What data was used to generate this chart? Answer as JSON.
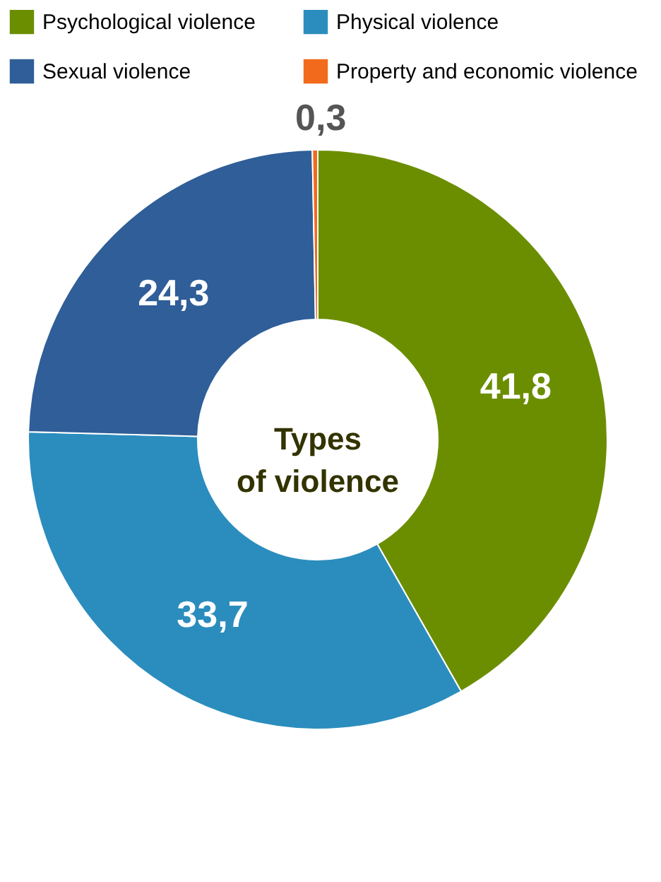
{
  "chart_data": {
    "type": "donut",
    "categories": [
      "Psychological violence",
      "Physical violence",
      "Sexual violence",
      "Property and economic violence"
    ],
    "values": [
      41.8,
      33.7,
      24.3,
      0.3
    ],
    "colors": [
      "#6b8e00",
      "#2b8dbd",
      "#2f5e98",
      "#f26a1b"
    ],
    "value_labels": [
      "41,8",
      "33,7",
      "24,3",
      "0,3"
    ],
    "annotations": [
      "Types\nof violence"
    ],
    "legend": "top"
  }
}
